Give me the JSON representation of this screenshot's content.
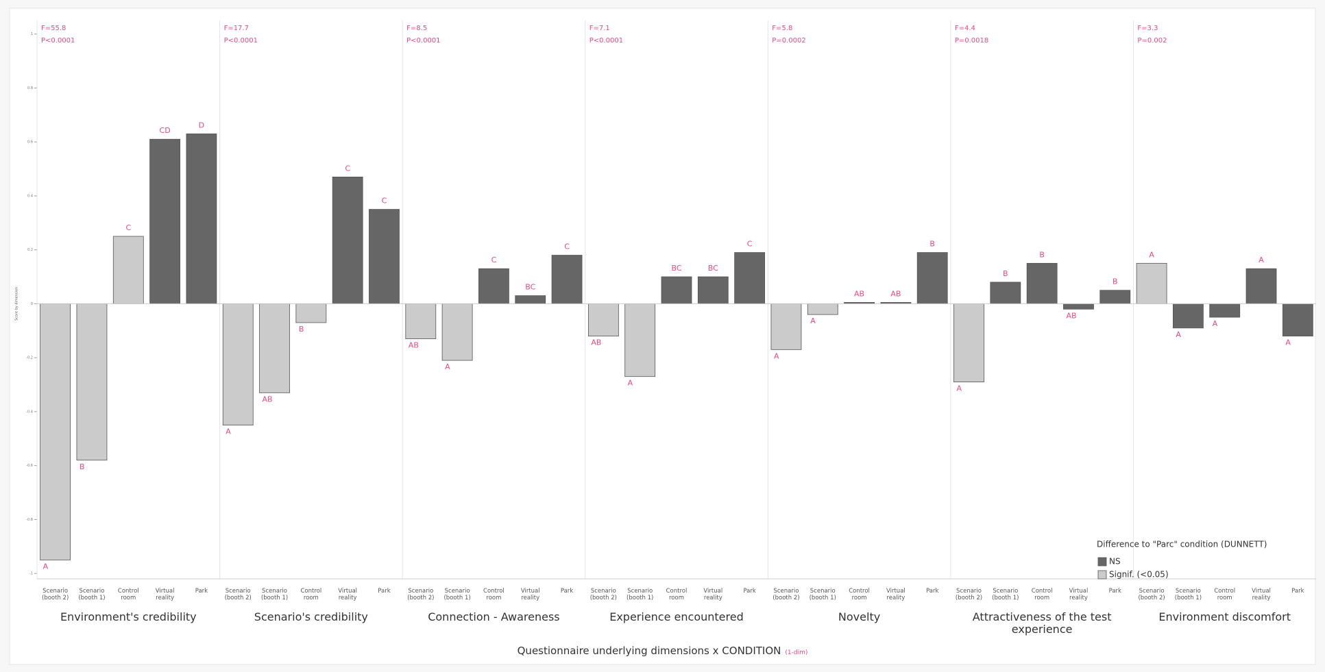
{
  "chart_data": {
    "type": "bar",
    "y_label": "Score by dimension",
    "x_label": "Questionnaire underlying dimensions x CONDITION",
    "x_label_note": "(1-dim)",
    "ylim": [
      -1.02,
      1.05
    ],
    "yticks": [
      -1,
      -0.8,
      -0.6,
      -0.4,
      -0.2,
      0,
      0.2,
      0.4,
      0.6,
      0.8,
      1
    ],
    "categories": [
      "Scenario (booth 2)",
      "Scenario (booth 1)",
      "Control room",
      "Virtual reality",
      "Park"
    ],
    "legend": {
      "title": "Difference to \"Parc\" condition (DUNNETT)",
      "entries": [
        {
          "name": "NS",
          "color": "#666666"
        },
        {
          "name": "Signif. (<0.05)",
          "color": "#cbcbcb"
        }
      ]
    },
    "annotation_color": "#e8497f",
    "panels": [
      {
        "title": "Environment's credibility",
        "stats": [
          "F=55.8",
          "P<0.0001"
        ],
        "values": [
          -0.95,
          -0.58,
          0.25,
          0.61,
          0.63
        ],
        "letters": [
          "A",
          "B",
          "C",
          "CD",
          "D"
        ],
        "colors": [
          "#cbcbcb",
          "#cbcbcb",
          "#cbcbcb",
          "#666666",
          "#666666"
        ]
      },
      {
        "title": "Scenario's credibility",
        "stats": [
          "F=17.7",
          "P<0.0001"
        ],
        "values": [
          -0.45,
          -0.33,
          -0.07,
          0.47,
          0.35
        ],
        "letters": [
          "A",
          "AB",
          "B",
          "C",
          "C"
        ],
        "colors": [
          "#cbcbcb",
          "#cbcbcb",
          "#cbcbcb",
          "#666666",
          "#666666"
        ]
      },
      {
        "title": "Connection - Awareness",
        "stats": [
          "F=8.5",
          "P<0.0001"
        ],
        "values": [
          -0.13,
          -0.21,
          0.13,
          0.03,
          0.18
        ],
        "letters": [
          "AB",
          "A",
          "C",
          "BC",
          "C"
        ],
        "colors": [
          "#cbcbcb",
          "#cbcbcb",
          "#666666",
          "#666666",
          "#666666"
        ]
      },
      {
        "title": "Experience encountered",
        "stats": [
          "F=7.1",
          "P<0.0001"
        ],
        "values": [
          -0.12,
          -0.27,
          0.1,
          0.1,
          0.19
        ],
        "letters": [
          "AB",
          "A",
          "BC",
          "BC",
          "C"
        ],
        "colors": [
          "#cbcbcb",
          "#cbcbcb",
          "#666666",
          "#666666",
          "#666666"
        ]
      },
      {
        "title": "Novelty",
        "stats": [
          "F=5.8",
          "P=0.0002"
        ],
        "values": [
          -0.17,
          -0.04,
          0.005,
          0.005,
          0.19
        ],
        "letters": [
          "A",
          "A",
          "AB",
          "AB",
          "B"
        ],
        "colors": [
          "#cbcbcb",
          "#cbcbcb",
          "#666666",
          "#666666",
          "#666666"
        ]
      },
      {
        "title": "Attractiveness of the test experience",
        "stats": [
          "F=4.4",
          "P=0.0018"
        ],
        "values": [
          -0.29,
          0.08,
          0.15,
          -0.02,
          0.05
        ],
        "letters": [
          "A",
          "B",
          "B",
          "AB",
          "B"
        ],
        "colors": [
          "#cbcbcb",
          "#666666",
          "#666666",
          "#666666",
          "#666666"
        ]
      },
      {
        "title": "Environment discomfort",
        "stats": [
          "F=3.3",
          "P=0.002"
        ],
        "values": [
          0.15,
          -0.09,
          -0.05,
          0.13,
          -0.12
        ],
        "letters": [
          "A",
          "A",
          "A",
          "A",
          "A"
        ],
        "colors": [
          "#cbcbcb",
          "#666666",
          "#666666",
          "#666666",
          "#666666"
        ]
      }
    ]
  }
}
